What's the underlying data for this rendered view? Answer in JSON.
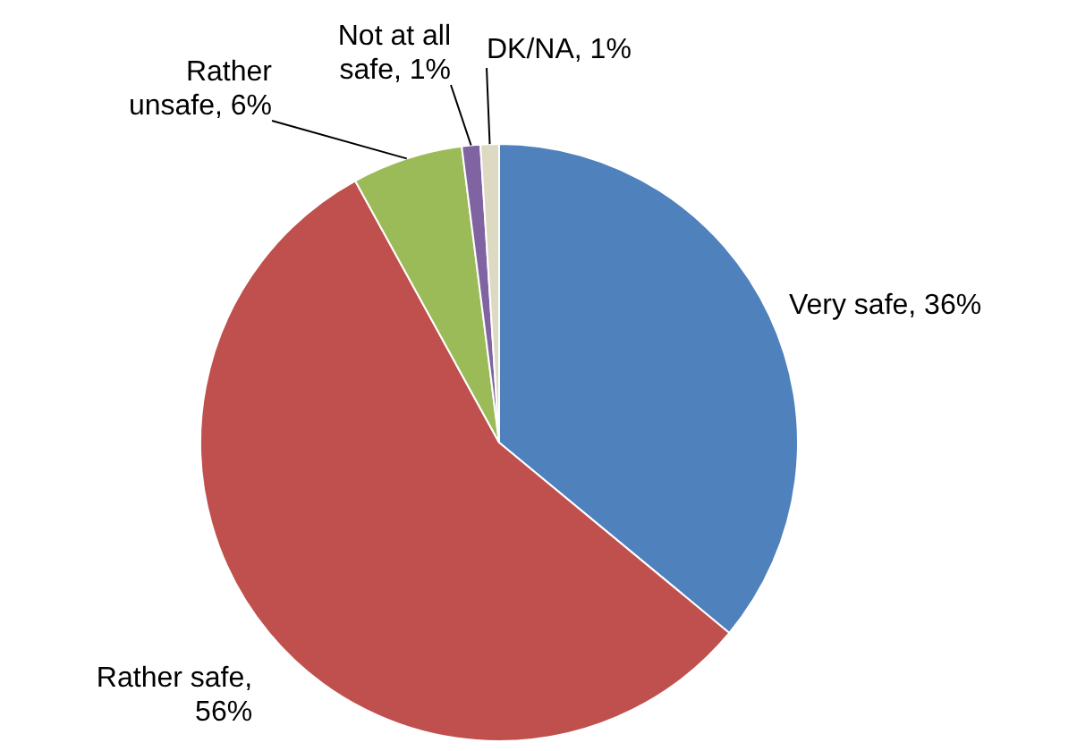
{
  "chart_data": {
    "type": "pie",
    "categories": [
      "Very safe, 36%",
      "Rather safe, 56%",
      "Rather unsafe, 6%",
      "Not at all safe, 1%",
      "DK/NA, 1%"
    ],
    "values": [
      36,
      56,
      6,
      1,
      1
    ],
    "colors": [
      "#4f81bd",
      "#c0504d",
      "#9bbb59",
      "#8064a2",
      "#ddd9c3"
    ]
  }
}
